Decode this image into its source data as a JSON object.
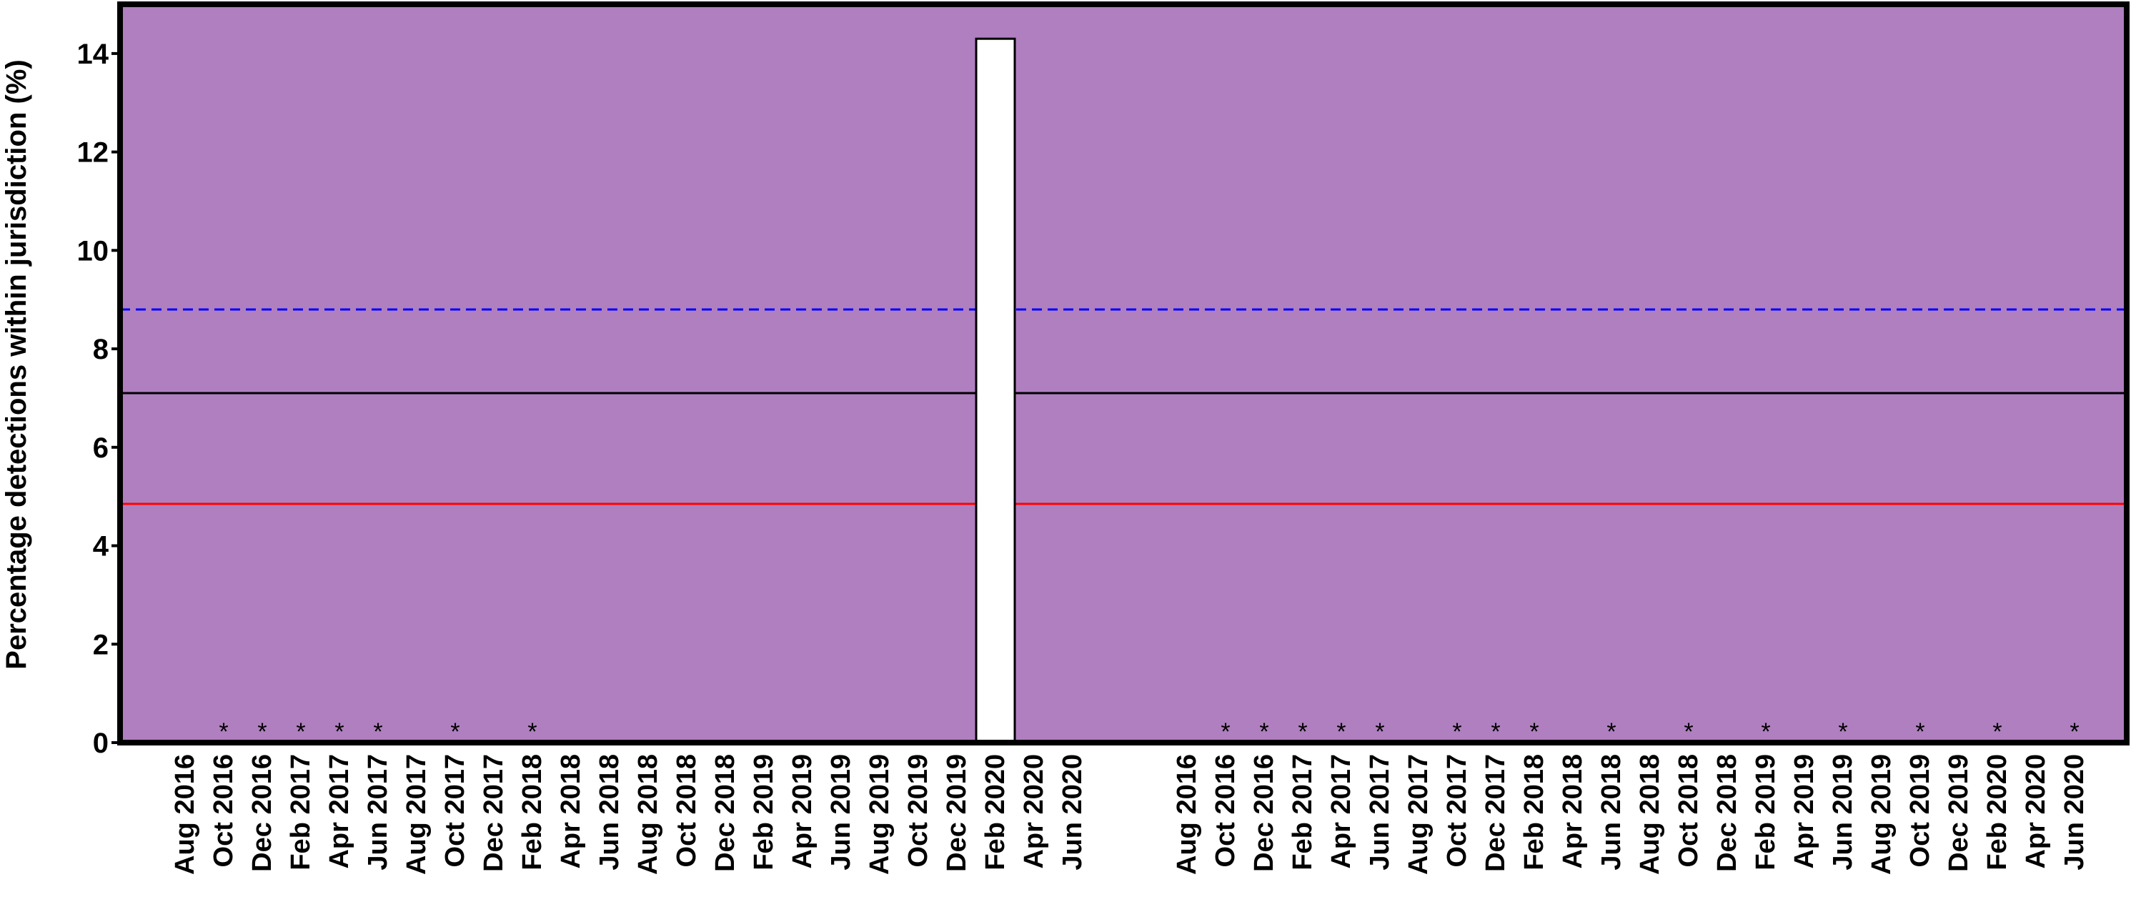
{
  "chart_data": {
    "type": "bar",
    "ylabel": "Percentage detections  within jurisdiction (%)",
    "ylim": [
      0,
      15
    ],
    "yticks": [
      0,
      2,
      4,
      6,
      8,
      10,
      12,
      14
    ],
    "background_color": "#b07fc0",
    "bar_color": "#ffffff",
    "panels": [
      {
        "categories": [
          "Aug 2016",
          "Oct 2016",
          "Dec 2016",
          "Feb 2017",
          "Apr 2017",
          "Jun 2017",
          "Aug 2017",
          "Oct 2017",
          "Dec 2017",
          "Feb 2018",
          "Apr 2018",
          "Jun 2018",
          "Aug 2018",
          "Oct 2018",
          "Dec 2018",
          "Feb 2019",
          "Apr 2019",
          "Jun 2019",
          "Aug 2019",
          "Oct 2019",
          "Dec 2019",
          "Feb 2020",
          "Apr 2020",
          "Jun 2020"
        ],
        "values": [
          0,
          0,
          0,
          0,
          0,
          0,
          0,
          0,
          0,
          0,
          0,
          0,
          0,
          0,
          0,
          0,
          0,
          0,
          0,
          0,
          0,
          14.3,
          0,
          0
        ],
        "asterisks": [
          "Oct 2016",
          "Dec 2016",
          "Feb 2017",
          "Apr 2017",
          "Jun 2017",
          "Oct 2017",
          "Feb 2018"
        ]
      },
      {
        "categories": [
          "Aug 2016",
          "Oct 2016",
          "Dec 2016",
          "Feb 2017",
          "Apr 2017",
          "Jun 2017",
          "Aug 2017",
          "Oct 2017",
          "Dec 2017",
          "Feb 2018",
          "Apr 2018",
          "Jun 2018",
          "Aug 2018",
          "Oct 2018",
          "Dec 2018",
          "Feb 2019",
          "Apr 2019",
          "Jun 2019",
          "Aug 2019",
          "Oct 2019",
          "Dec 2019",
          "Feb 2020",
          "Apr 2020",
          "Jun 2020"
        ],
        "values": [
          0,
          0,
          0,
          0,
          0,
          0,
          0,
          0,
          0,
          0,
          0,
          0,
          0,
          0,
          0,
          0,
          0,
          0,
          0,
          0,
          0,
          0,
          0,
          0
        ],
        "asterisks": [
          "Oct 2016",
          "Dec 2016",
          "Feb 2017",
          "Apr 2017",
          "Jun 2017",
          "Oct 2017",
          "Dec 2017",
          "Feb 2018",
          "Jun 2018",
          "Oct 2018",
          "Feb 2019",
          "Jun 2019",
          "Oct 2019",
          "Feb 2020",
          "Jun 2020"
        ]
      }
    ],
    "reference_lines": [
      {
        "value": 8.8,
        "color": "#0000ff",
        "style": "dashed"
      },
      {
        "value": 7.1,
        "color": "#000000",
        "style": "solid"
      },
      {
        "value": 4.85,
        "color": "#ff0000",
        "style": "solid"
      }
    ],
    "asterisk_symbol": "*"
  }
}
